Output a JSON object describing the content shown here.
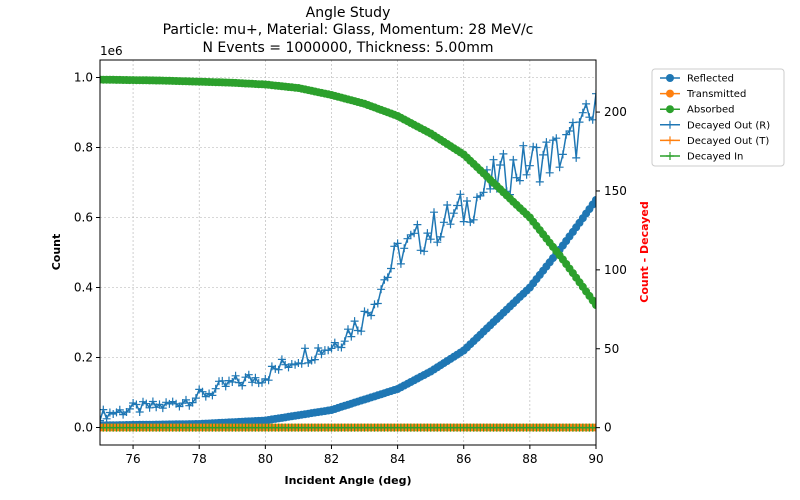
{
  "chart_data": {
    "type": "line",
    "title": [
      "Angle Study",
      "Particle: mu+, Material: Glass, Momentum: 28 MeV/c",
      "N Events = 1000000, Thickness: 5.00mm"
    ],
    "xlabel": "Incident Angle (deg)",
    "ylabel": "Count",
    "ylabel_right": "Count - Decayed",
    "y_offset_label": "1e6",
    "xlim": [
      75,
      90
    ],
    "ylim": [
      -0.05,
      1.05
    ],
    "ylim_right": [
      -11,
      233
    ],
    "xticks": [
      "76",
      "78",
      "80",
      "82",
      "84",
      "86",
      "88",
      "90"
    ],
    "yticks": [
      "0.0",
      "0.2",
      "0.4",
      "0.6",
      "0.8",
      "1.0"
    ],
    "yticks_right": [
      "0",
      "50",
      "100",
      "150",
      "200"
    ],
    "grid": true,
    "legend_position": "outside-right-top",
    "angle_range": {
      "start": 75,
      "end": 90,
      "points": 151
    },
    "series": [
      {
        "name": "Reflected",
        "axis": "left",
        "color": "#1f77b4",
        "marker": "circle",
        "anchors": [
          [
            75,
            0.006
          ],
          [
            78,
            0.01
          ],
          [
            80,
            0.02
          ],
          [
            81,
            0.035
          ],
          [
            82,
            0.05
          ],
          [
            83,
            0.08
          ],
          [
            84,
            0.11
          ],
          [
            85,
            0.16
          ],
          [
            86,
            0.22
          ],
          [
            87,
            0.31
          ],
          [
            88,
            0.4
          ],
          [
            89,
            0.52
          ],
          [
            90,
            0.65
          ]
        ]
      },
      {
        "name": "Transmitted",
        "axis": "left",
        "color": "#ff7f0e",
        "marker": "circle",
        "anchors": [
          [
            75,
            0.0
          ],
          [
            90,
            0.0
          ]
        ]
      },
      {
        "name": "Absorbed",
        "axis": "left",
        "color": "#2ca02c",
        "marker": "circle",
        "anchors": [
          [
            75,
            0.994
          ],
          [
            77,
            0.991
          ],
          [
            79,
            0.985
          ],
          [
            80,
            0.98
          ],
          [
            81,
            0.97
          ],
          [
            82,
            0.95
          ],
          [
            83,
            0.925
          ],
          [
            84,
            0.89
          ],
          [
            85,
            0.84
          ],
          [
            86,
            0.78
          ],
          [
            87,
            0.69
          ],
          [
            88,
            0.6
          ],
          [
            89,
            0.48
          ],
          [
            90,
            0.35
          ]
        ]
      },
      {
        "name": "Decayed Out (R)",
        "axis": "right",
        "color": "#1f77b4",
        "marker": "plus",
        "anchors": [
          [
            75,
            8
          ],
          [
            76,
            12
          ],
          [
            77,
            14
          ],
          [
            78,
            20
          ],
          [
            79,
            28
          ],
          [
            80,
            33
          ],
          [
            81,
            45
          ],
          [
            82,
            52
          ],
          [
            83,
            70
          ],
          [
            84,
            110
          ],
          [
            85,
            125
          ],
          [
            86,
            138
          ],
          [
            87,
            158
          ],
          [
            88,
            168
          ],
          [
            89,
            175
          ],
          [
            90,
            198
          ]
        ]
      },
      {
        "name": "Decayed Out (T)",
        "axis": "right",
        "color": "#ff7f0e",
        "marker": "plus",
        "anchors": [
          [
            75,
            0
          ],
          [
            90,
            0
          ]
        ]
      },
      {
        "name": "Decayed In",
        "axis": "right",
        "color": "#2ca02c",
        "marker": "plus",
        "anchors": [
          [
            75,
            0
          ],
          [
            90,
            0
          ]
        ]
      }
    ]
  }
}
